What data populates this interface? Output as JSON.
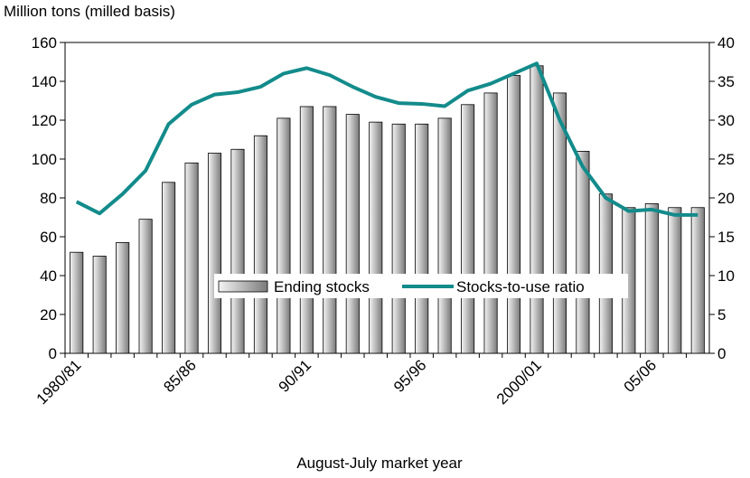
{
  "chart_data": {
    "type": "bar-line",
    "y_label": "Million tons (milled basis)",
    "x_label": "August-July market year",
    "categories": [
      "1980/81",
      null,
      null,
      null,
      null,
      "85/86",
      null,
      null,
      null,
      null,
      "90/91",
      null,
      null,
      null,
      null,
      "95/96",
      null,
      null,
      null,
      null,
      "2000/01",
      null,
      null,
      null,
      null,
      "05/06",
      null,
      null
    ],
    "series": [
      {
        "name": "Ending stocks",
        "type": "bar",
        "color": "#c0c0c0",
        "values": [
          52,
          50,
          57,
          69,
          88,
          98,
          103,
          105,
          112,
          121,
          127,
          127,
          123,
          119,
          118,
          118,
          121,
          128,
          134,
          143,
          148,
          134,
          104,
          82,
          75,
          77,
          75,
          75
        ]
      },
      {
        "name": "Stocks-to-use ratio",
        "type": "line",
        "axis": "y2",
        "color": "#138b8b",
        "values": [
          19.5,
          18,
          20.5,
          23.5,
          29.5,
          32,
          33.3,
          33.6,
          34.3,
          36,
          36.7,
          35.8,
          34.3,
          33,
          32.2,
          32.1,
          31.8,
          33.8,
          34.7,
          36,
          37.3,
          30,
          24,
          20,
          18.3,
          18.5,
          17.8,
          17.8
        ]
      }
    ],
    "ylim": [
      0,
      160
    ],
    "yticks": [
      0,
      20,
      40,
      60,
      80,
      100,
      120,
      140,
      160
    ],
    "y2lim": [
      0,
      40
    ],
    "y2ticks": [
      0,
      5,
      10,
      15,
      20,
      25,
      30,
      35,
      40
    ],
    "grid": false
  }
}
